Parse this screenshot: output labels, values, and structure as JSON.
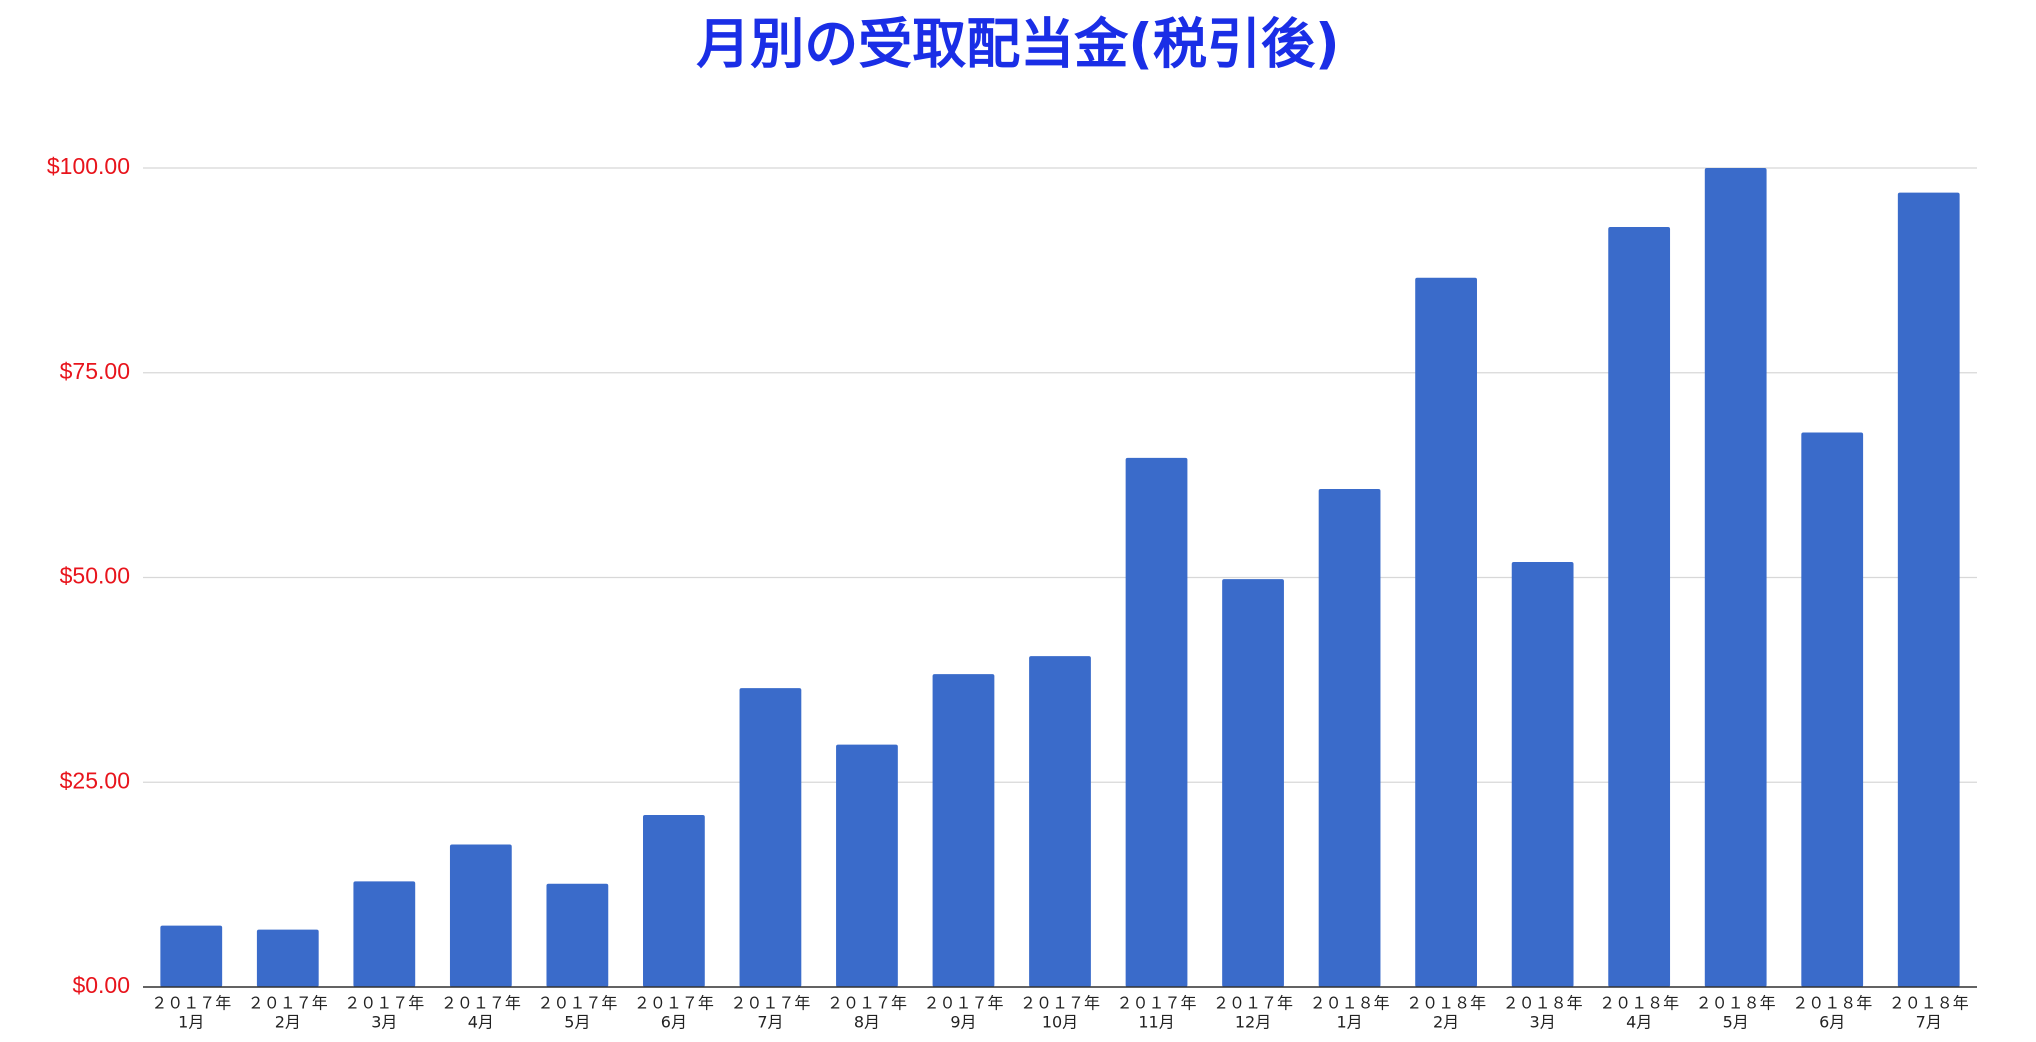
{
  "chart_data": {
    "type": "bar",
    "title": "月別の受取配当金(税引後)",
    "categories": [
      [
        "２０１７年",
        "1月"
      ],
      [
        "２０１７年",
        "2月"
      ],
      [
        "２０１７年",
        "3月"
      ],
      [
        "２０１７年",
        "4月"
      ],
      [
        "２０１７年",
        "5月"
      ],
      [
        "２０１７年",
        "6月"
      ],
      [
        "２０１７年",
        "7月"
      ],
      [
        "２０１７年",
        "8月"
      ],
      [
        "２０１７年",
        "9月"
      ],
      [
        "２０１７年",
        "10月"
      ],
      [
        "２０１７年",
        "11月"
      ],
      [
        "２０１７年",
        "12月"
      ],
      [
        "２０１８年",
        "1月"
      ],
      [
        "２０１８年",
        "2月"
      ],
      [
        "２０１８年",
        "3月"
      ],
      [
        "２０１８年",
        "4月"
      ],
      [
        "２０１８年",
        "5月"
      ],
      [
        "２０１８年",
        "6月"
      ],
      [
        "２０１８年",
        "7月"
      ]
    ],
    "values": [
      7.5,
      7.0,
      12.9,
      17.4,
      12.6,
      21.0,
      36.5,
      29.6,
      38.2,
      40.4,
      64.6,
      49.8,
      60.8,
      86.6,
      51.9,
      92.8,
      100.0,
      67.7,
      97.0
    ],
    "color": "#3a6bca",
    "ylim": [
      0,
      100
    ],
    "yticks": [
      {
        "value": 0,
        "label": "$0.00"
      },
      {
        "value": 25,
        "label": "$25.00"
      },
      {
        "value": 50,
        "label": "$50.00"
      },
      {
        "value": 75,
        "label": "$75.00"
      },
      {
        "value": 100,
        "label": "$100.00"
      }
    ],
    "grid": true
  }
}
